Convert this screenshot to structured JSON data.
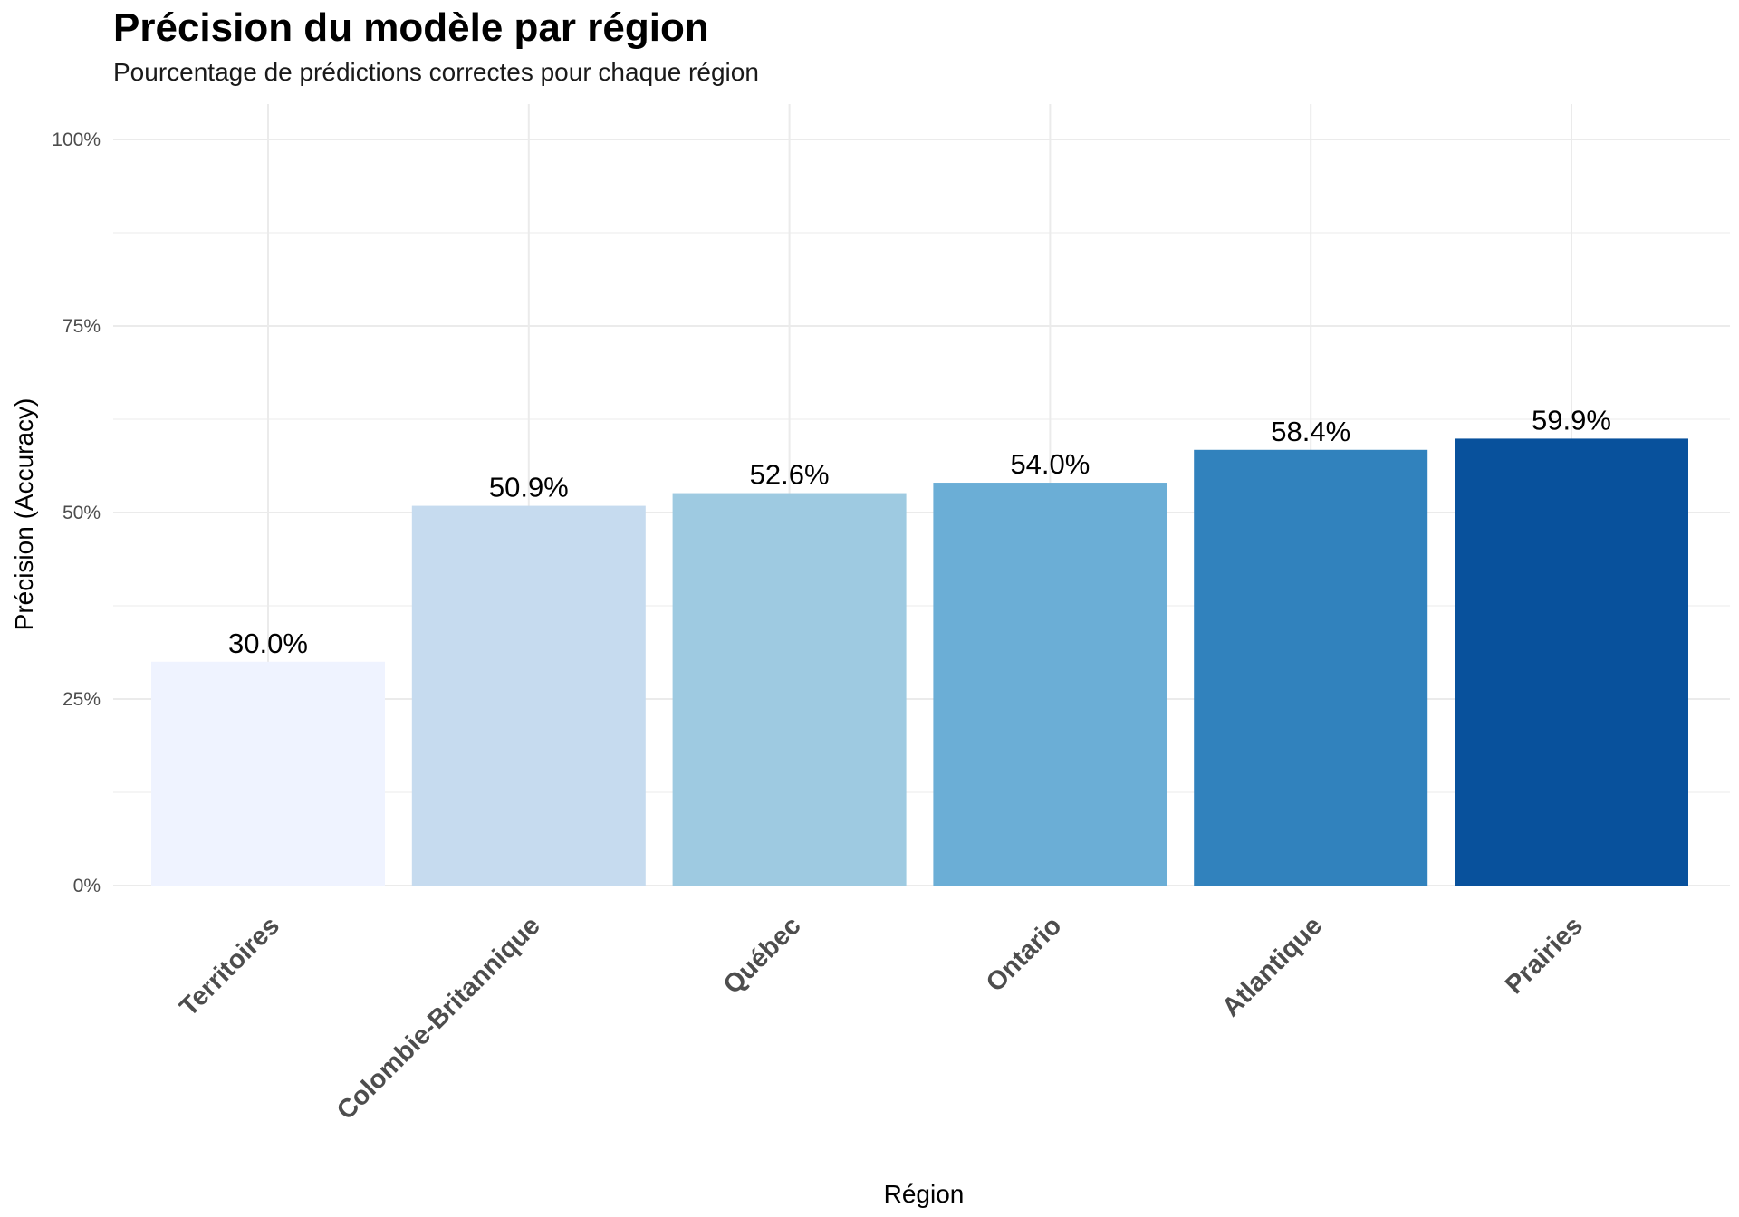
{
  "chart_data": {
    "type": "bar",
    "title": "Précision du modèle par région",
    "subtitle": "Pourcentage de prédictions correctes pour chaque région",
    "xlabel": "Région",
    "ylabel": "Précision (Accuracy)",
    "categories": [
      "Territoires",
      "Colombie-Britannique",
      "Québec",
      "Ontario",
      "Atlantique",
      "Prairies"
    ],
    "values": [
      30.0,
      50.9,
      52.6,
      54.0,
      58.4,
      59.9
    ],
    "value_labels": [
      "30.0%",
      "50.9%",
      "52.6%",
      "54.0%",
      "58.4%",
      "59.9%"
    ],
    "colors": [
      "#eff3ff",
      "#c6dbef",
      "#9ecae1",
      "#6baed6",
      "#3182bd",
      "#08519c"
    ],
    "ylim": [
      0,
      100
    ],
    "yticks": [
      0,
      25,
      50,
      75,
      100
    ],
    "ytick_labels": [
      "0%",
      "25%",
      "50%",
      "75%",
      "100%"
    ],
    "grid": true,
    "legend": "none"
  }
}
